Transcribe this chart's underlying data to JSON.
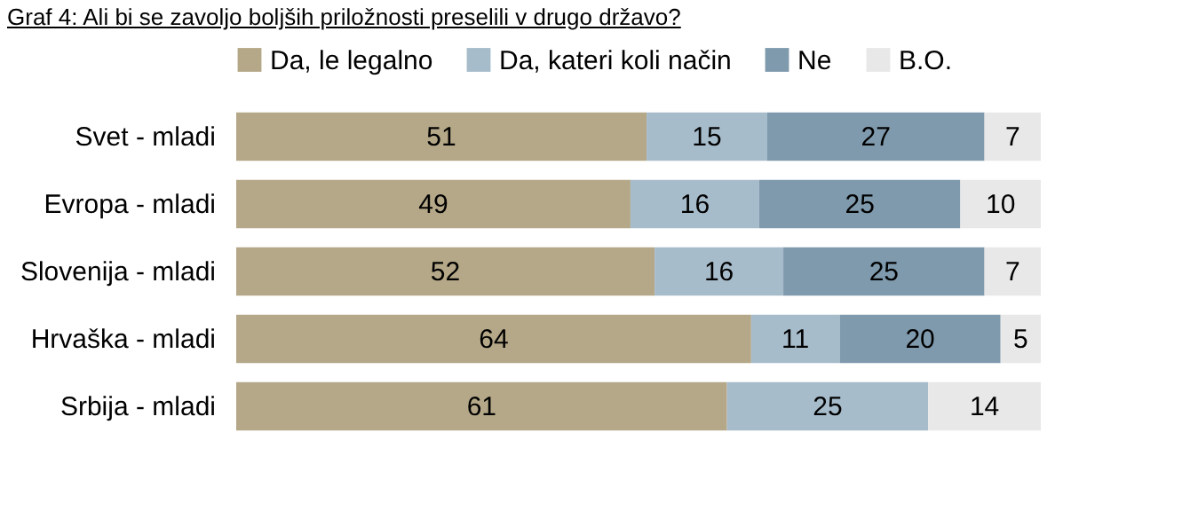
{
  "chart_data": {
    "type": "bar",
    "orientation": "horizontal",
    "stacked": true,
    "data_labels": true,
    "legend": "top",
    "title": "Graf 4: Ali bi se zavoljo boljših priložnosti preselili v drugo državo?",
    "categories": [
      "Svet - mladi",
      "Evropa - mladi",
      "Slovenija - mladi",
      "Hrvaška - mladi",
      "Srbija - mladi"
    ],
    "series": [
      {
        "name": "Da, le legalno",
        "color": "#b5a888",
        "values": [
          51,
          49,
          52,
          64,
          61
        ]
      },
      {
        "name": "Da, kateri koli način",
        "color": "#a7bccb",
        "values": [
          15,
          16,
          16,
          11,
          25
        ]
      },
      {
        "name": "Ne",
        "color": "#7f9aad",
        "values": [
          27,
          25,
          25,
          20,
          null
        ]
      },
      {
        "name": "B.O.",
        "color": "#e8e8e8",
        "values": [
          7,
          10,
          7,
          5,
          14
        ]
      }
    ]
  }
}
